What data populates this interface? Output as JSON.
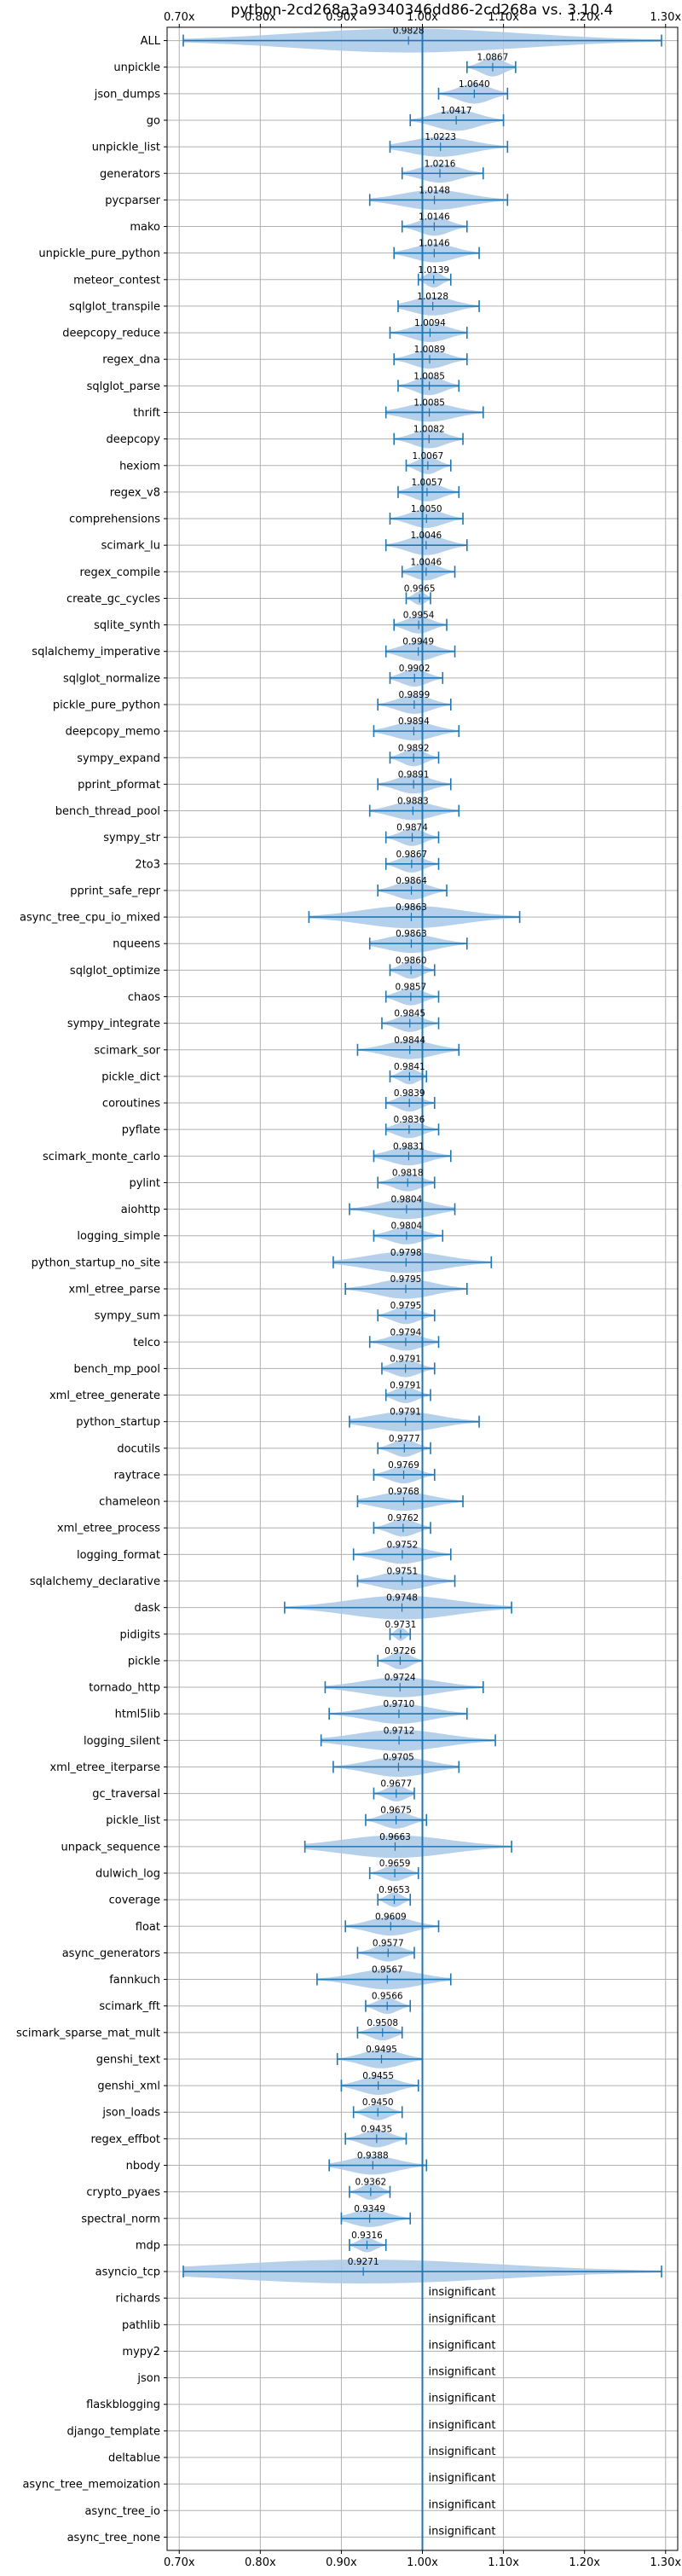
{
  "chart_data": {
    "type": "violin",
    "title": "python-2cd268a3a9340346dd86-2cd268a vs. 3.10.4",
    "xlim": [
      0.685,
      1.315
    ],
    "x_ticks": [
      0.7,
      0.8,
      0.9,
      1.0,
      1.1,
      1.2,
      1.3
    ],
    "x_tick_labels": [
      "0.70x",
      "0.80x",
      "0.90x",
      "1.00x",
      "1.10x",
      "1.20x",
      "1.30x"
    ],
    "reference_line": 1.0,
    "grid": true,
    "colors": {
      "violin": "#a8c8e8",
      "line": "#1f77b4",
      "grid": "#b0b0b0"
    },
    "insignificant_text": "insignificant",
    "benchmarks": [
      {
        "name": "ALL",
        "value": 0.9828,
        "label": "0.9828",
        "min": 0.705,
        "max": 1.295,
        "width": 0.9
      },
      {
        "name": "unpickle",
        "value": 1.0867,
        "label": "1.0867",
        "min": 1.055,
        "max": 1.115,
        "width": 0.7
      },
      {
        "name": "json_dumps",
        "value": 1.064,
        "label": "1.0640",
        "min": 1.02,
        "max": 1.105,
        "width": 0.75
      },
      {
        "name": "go",
        "value": 1.0417,
        "label": "1.0417",
        "min": 0.985,
        "max": 1.1,
        "width": 0.8
      },
      {
        "name": "unpickle_list",
        "value": 1.0223,
        "label": "1.0223",
        "min": 0.96,
        "max": 1.105,
        "width": 0.75
      },
      {
        "name": "generators",
        "value": 1.0216,
        "label": "1.0216",
        "min": 0.975,
        "max": 1.075,
        "width": 0.7
      },
      {
        "name": "pycparser",
        "value": 1.0148,
        "label": "1.0148",
        "min": 0.935,
        "max": 1.105,
        "width": 0.75
      },
      {
        "name": "mako",
        "value": 1.0146,
        "label": "1.0146",
        "min": 0.975,
        "max": 1.055,
        "width": 0.7
      },
      {
        "name": "unpickle_pure_python",
        "value": 1.0146,
        "label": "1.0146",
        "min": 0.965,
        "max": 1.07,
        "width": 0.7
      },
      {
        "name": "meteor_contest",
        "value": 1.0139,
        "label": "1.0139",
        "min": 0.995,
        "max": 1.035,
        "width": 0.6
      },
      {
        "name": "sqlglot_transpile",
        "value": 1.0128,
        "label": "1.0128",
        "min": 0.97,
        "max": 1.07,
        "width": 0.7
      },
      {
        "name": "deepcopy_reduce",
        "value": 1.0094,
        "label": "1.0094",
        "min": 0.96,
        "max": 1.055,
        "width": 0.7
      },
      {
        "name": "regex_dna",
        "value": 1.0089,
        "label": "1.0089",
        "min": 0.965,
        "max": 1.055,
        "width": 0.7
      },
      {
        "name": "sqlglot_parse",
        "value": 1.0085,
        "label": "1.0085",
        "min": 0.97,
        "max": 1.045,
        "width": 0.7
      },
      {
        "name": "thrift",
        "value": 1.0085,
        "label": "1.0085",
        "min": 0.955,
        "max": 1.075,
        "width": 0.7
      },
      {
        "name": "deepcopy",
        "value": 1.0082,
        "label": "1.0082",
        "min": 0.965,
        "max": 1.05,
        "width": 0.7
      },
      {
        "name": "hexiom",
        "value": 1.0067,
        "label": "1.0067",
        "min": 0.98,
        "max": 1.035,
        "width": 0.65
      },
      {
        "name": "regex_v8",
        "value": 1.0057,
        "label": "1.0057",
        "min": 0.97,
        "max": 1.045,
        "width": 0.7
      },
      {
        "name": "comprehensions",
        "value": 1.005,
        "label": "1.0050",
        "min": 0.96,
        "max": 1.05,
        "width": 0.7
      },
      {
        "name": "scimark_lu",
        "value": 1.0046,
        "label": "1.0046",
        "min": 0.955,
        "max": 1.055,
        "width": 0.75
      },
      {
        "name": "regex_compile",
        "value": 1.0046,
        "label": "1.0046",
        "min": 0.975,
        "max": 1.04,
        "width": 0.65
      },
      {
        "name": "create_gc_cycles",
        "value": 0.9965,
        "label": "0.9965",
        "min": 0.98,
        "max": 1.01,
        "width": 0.5
      },
      {
        "name": "sqlite_synth",
        "value": 0.9954,
        "label": "0.9954",
        "min": 0.965,
        "max": 1.03,
        "width": 0.65
      },
      {
        "name": "sqlalchemy_imperative",
        "value": 0.9949,
        "label": "0.9949",
        "min": 0.955,
        "max": 1.04,
        "width": 0.7
      },
      {
        "name": "sqlglot_normalize",
        "value": 0.9902,
        "label": "0.9902",
        "min": 0.96,
        "max": 1.025,
        "width": 0.65
      },
      {
        "name": "pickle_pure_python",
        "value": 0.9899,
        "label": "0.9899",
        "min": 0.945,
        "max": 1.035,
        "width": 0.7
      },
      {
        "name": "deepcopy_memo",
        "value": 0.9894,
        "label": "0.9894",
        "min": 0.94,
        "max": 1.045,
        "width": 0.7
      },
      {
        "name": "sympy_expand",
        "value": 0.9892,
        "label": "0.9892",
        "min": 0.96,
        "max": 1.02,
        "width": 0.65
      },
      {
        "name": "pprint_pformat",
        "value": 0.9891,
        "label": "0.9891",
        "min": 0.945,
        "max": 1.035,
        "width": 0.7
      },
      {
        "name": "bench_thread_pool",
        "value": 0.9883,
        "label": "0.9883",
        "min": 0.935,
        "max": 1.045,
        "width": 0.7
      },
      {
        "name": "sympy_str",
        "value": 0.9874,
        "label": "0.9874",
        "min": 0.955,
        "max": 1.02,
        "width": 0.65
      },
      {
        "name": "2to3",
        "value": 0.9867,
        "label": "0.9867",
        "min": 0.955,
        "max": 1.02,
        "width": 0.65
      },
      {
        "name": "pprint_safe_repr",
        "value": 0.9864,
        "label": "0.9864",
        "min": 0.945,
        "max": 1.03,
        "width": 0.7
      },
      {
        "name": "async_tree_cpu_io_mixed",
        "value": 0.9863,
        "label": "0.9863",
        "min": 0.86,
        "max": 1.12,
        "width": 0.85
      },
      {
        "name": "nqueens",
        "value": 0.9863,
        "label": "0.9863",
        "min": 0.935,
        "max": 1.055,
        "width": 0.7
      },
      {
        "name": "sqlglot_optimize",
        "value": 0.986,
        "label": "0.9860",
        "min": 0.96,
        "max": 1.015,
        "width": 0.65
      },
      {
        "name": "chaos",
        "value": 0.9857,
        "label": "0.9857",
        "min": 0.955,
        "max": 1.02,
        "width": 0.65
      },
      {
        "name": "sympy_integrate",
        "value": 0.9845,
        "label": "0.9845",
        "min": 0.95,
        "max": 1.02,
        "width": 0.65
      },
      {
        "name": "scimark_sor",
        "value": 0.9844,
        "label": "0.9844",
        "min": 0.92,
        "max": 1.045,
        "width": 0.7
      },
      {
        "name": "pickle_dict",
        "value": 0.9841,
        "label": "0.9841",
        "min": 0.96,
        "max": 1.005,
        "width": 0.6
      },
      {
        "name": "coroutines",
        "value": 0.9839,
        "label": "0.9839",
        "min": 0.955,
        "max": 1.015,
        "width": 0.65
      },
      {
        "name": "pyflate",
        "value": 0.9836,
        "label": "0.9836",
        "min": 0.955,
        "max": 1.02,
        "width": 0.65
      },
      {
        "name": "scimark_monte_carlo",
        "value": 0.9831,
        "label": "0.9831",
        "min": 0.94,
        "max": 1.035,
        "width": 0.7
      },
      {
        "name": "pylint",
        "value": 0.9818,
        "label": "0.9818",
        "min": 0.945,
        "max": 1.015,
        "width": 0.65
      },
      {
        "name": "aiohttp",
        "value": 0.9804,
        "label": "0.9804",
        "min": 0.91,
        "max": 1.04,
        "width": 0.75
      },
      {
        "name": "logging_simple",
        "value": 0.9804,
        "label": "0.9804",
        "min": 0.94,
        "max": 1.025,
        "width": 0.65
      },
      {
        "name": "python_startup_no_site",
        "value": 0.9798,
        "label": "0.9798",
        "min": 0.89,
        "max": 1.085,
        "width": 0.8
      },
      {
        "name": "xml_etree_parse",
        "value": 0.9795,
        "label": "0.9795",
        "min": 0.905,
        "max": 1.055,
        "width": 0.75
      },
      {
        "name": "sympy_sum",
        "value": 0.9795,
        "label": "0.9795",
        "min": 0.945,
        "max": 1.015,
        "width": 0.65
      },
      {
        "name": "telco",
        "value": 0.9794,
        "label": "0.9794",
        "min": 0.935,
        "max": 1.02,
        "width": 0.65
      },
      {
        "name": "bench_mp_pool",
        "value": 0.9791,
        "label": "0.9791",
        "min": 0.95,
        "max": 1.015,
        "width": 0.65
      },
      {
        "name": "xml_etree_generate",
        "value": 0.9791,
        "label": "0.9791",
        "min": 0.955,
        "max": 1.01,
        "width": 0.6
      },
      {
        "name": "python_startup",
        "value": 0.9791,
        "label": "0.9791",
        "min": 0.91,
        "max": 1.07,
        "width": 0.75
      },
      {
        "name": "docutils",
        "value": 0.9777,
        "label": "0.9777",
        "min": 0.945,
        "max": 1.01,
        "width": 0.65
      },
      {
        "name": "raytrace",
        "value": 0.9769,
        "label": "0.9769",
        "min": 0.94,
        "max": 1.015,
        "width": 0.65
      },
      {
        "name": "chameleon",
        "value": 0.9768,
        "label": "0.9768",
        "min": 0.92,
        "max": 1.05,
        "width": 0.7
      },
      {
        "name": "xml_etree_process",
        "value": 0.9762,
        "label": "0.9762",
        "min": 0.94,
        "max": 1.01,
        "width": 0.65
      },
      {
        "name": "logging_format",
        "value": 0.9752,
        "label": "0.9752",
        "min": 0.915,
        "max": 1.035,
        "width": 0.7
      },
      {
        "name": "sqlalchemy_declarative",
        "value": 0.9751,
        "label": "0.9751",
        "min": 0.92,
        "max": 1.04,
        "width": 0.7
      },
      {
        "name": "dask",
        "value": 0.9748,
        "label": "0.9748",
        "min": 0.83,
        "max": 1.11,
        "width": 0.9
      },
      {
        "name": "pidigits",
        "value": 0.9731,
        "label": "0.9731",
        "min": 0.96,
        "max": 0.985,
        "width": 0.5
      },
      {
        "name": "pickle",
        "value": 0.9726,
        "label": "0.9726",
        "min": 0.945,
        "max": 1.0,
        "width": 0.65
      },
      {
        "name": "tornado_http",
        "value": 0.9724,
        "label": "0.9724",
        "min": 0.88,
        "max": 1.075,
        "width": 0.75
      },
      {
        "name": "html5lib",
        "value": 0.971,
        "label": "0.9710",
        "min": 0.885,
        "max": 1.055,
        "width": 0.75
      },
      {
        "name": "logging_silent",
        "value": 0.9712,
        "label": "0.9712",
        "min": 0.875,
        "max": 1.09,
        "width": 0.8
      },
      {
        "name": "xml_etree_iterparse",
        "value": 0.9705,
        "label": "0.9705",
        "min": 0.89,
        "max": 1.045,
        "width": 0.75
      },
      {
        "name": "gc_traversal",
        "value": 0.9677,
        "label": "0.9677",
        "min": 0.94,
        "max": 0.99,
        "width": 0.6
      },
      {
        "name": "pickle_list",
        "value": 0.9675,
        "label": "0.9675",
        "min": 0.93,
        "max": 1.005,
        "width": 0.65
      },
      {
        "name": "unpack_sequence",
        "value": 0.9663,
        "label": "0.9663",
        "min": 0.855,
        "max": 1.11,
        "width": 0.85
      },
      {
        "name": "dulwich_log",
        "value": 0.9659,
        "label": "0.9659",
        "min": 0.935,
        "max": 0.995,
        "width": 0.6
      },
      {
        "name": "coverage",
        "value": 0.9653,
        "label": "0.9653",
        "min": 0.945,
        "max": 0.985,
        "width": 0.55
      },
      {
        "name": "float",
        "value": 0.9609,
        "label": "0.9609",
        "min": 0.905,
        "max": 1.02,
        "width": 0.7
      },
      {
        "name": "async_generators",
        "value": 0.9577,
        "label": "0.9577",
        "min": 0.92,
        "max": 0.99,
        "width": 0.65
      },
      {
        "name": "fannkuch",
        "value": 0.9567,
        "label": "0.9567",
        "min": 0.87,
        "max": 1.035,
        "width": 0.75
      },
      {
        "name": "scimark_fft",
        "value": 0.9566,
        "label": "0.9566",
        "min": 0.93,
        "max": 0.985,
        "width": 0.6
      },
      {
        "name": "scimark_sparse_mat_mult",
        "value": 0.9508,
        "label": "0.9508",
        "min": 0.92,
        "max": 0.975,
        "width": 0.6
      },
      {
        "name": "genshi_text",
        "value": 0.9495,
        "label": "0.9495",
        "min": 0.895,
        "max": 1.0,
        "width": 0.7
      },
      {
        "name": "genshi_xml",
        "value": 0.9455,
        "label": "0.9455",
        "min": 0.9,
        "max": 0.995,
        "width": 0.7
      },
      {
        "name": "json_loads",
        "value": 0.945,
        "label": "0.9450",
        "min": 0.915,
        "max": 0.975,
        "width": 0.6
      },
      {
        "name": "regex_effbot",
        "value": 0.9435,
        "label": "0.9435",
        "min": 0.905,
        "max": 0.98,
        "width": 0.65
      },
      {
        "name": "nbody",
        "value": 0.9388,
        "label": "0.9388",
        "min": 0.885,
        "max": 1.005,
        "width": 0.7
      },
      {
        "name": "crypto_pyaes",
        "value": 0.9362,
        "label": "0.9362",
        "min": 0.91,
        "max": 0.96,
        "width": 0.6
      },
      {
        "name": "spectral_norm",
        "value": 0.9349,
        "label": "0.9349",
        "min": 0.9,
        "max": 0.985,
        "width": 0.65
      },
      {
        "name": "mdp",
        "value": 0.9316,
        "label": "0.9316",
        "min": 0.91,
        "max": 0.955,
        "width": 0.55
      },
      {
        "name": "asyncio_tcp",
        "value": 0.9271,
        "label": "0.9271",
        "min": 0.705,
        "max": 1.295,
        "width": 0.9
      },
      {
        "name": "richards",
        "value": null,
        "label": "insignificant"
      },
      {
        "name": "pathlib",
        "value": null,
        "label": "insignificant"
      },
      {
        "name": "mypy2",
        "value": null,
        "label": "insignificant"
      },
      {
        "name": "json",
        "value": null,
        "label": "insignificant"
      },
      {
        "name": "flaskblogging",
        "value": null,
        "label": "insignificant"
      },
      {
        "name": "django_template",
        "value": null,
        "label": "insignificant"
      },
      {
        "name": "deltablue",
        "value": null,
        "label": "insignificant"
      },
      {
        "name": "async_tree_memoization",
        "value": null,
        "label": "insignificant"
      },
      {
        "name": "async_tree_io",
        "value": null,
        "label": "insignificant"
      },
      {
        "name": "async_tree_none",
        "value": null,
        "label": "insignificant"
      }
    ]
  }
}
